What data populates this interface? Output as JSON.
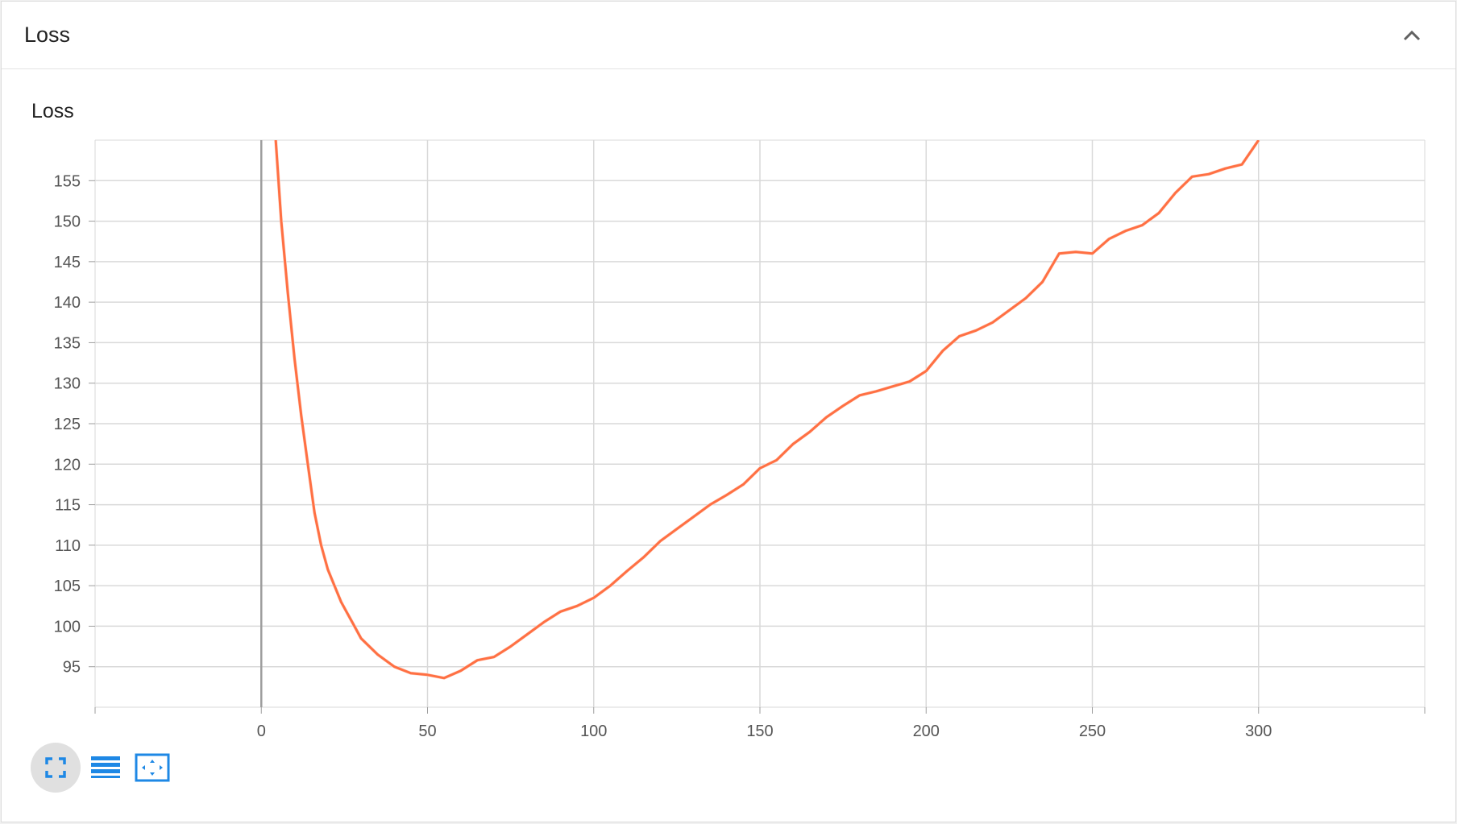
{
  "card": {
    "title": "Loss",
    "collapse_icon": "chevron-up-icon"
  },
  "toolbar": {
    "buttons": [
      {
        "name": "fullscreen-button",
        "icon": "fullscreen-icon",
        "active": true
      },
      {
        "name": "toggle-log-scale-button",
        "icon": "lines-icon",
        "active": false
      },
      {
        "name": "fit-domain-button",
        "icon": "fit-to-data-icon",
        "active": false
      }
    ]
  },
  "colors": {
    "line": "#ff7043",
    "line_raw": "#ffd8cc",
    "grid": "#d9d9d9",
    "axis_zero": "#9e9e9e",
    "icon_blue": "#1e88e5"
  },
  "chart_data": {
    "type": "line",
    "title": "Loss",
    "xlabel": "",
    "ylabel": "",
    "xlim": [
      -50,
      350
    ],
    "ylim": [
      90,
      160
    ],
    "x_ticks": [
      0,
      50,
      100,
      150,
      200,
      250,
      300
    ],
    "y_ticks": [
      95,
      100,
      105,
      110,
      115,
      120,
      125,
      130,
      135,
      140,
      145,
      150,
      155
    ],
    "grid": true,
    "series": [
      {
        "x": [
          4,
          6,
          8,
          10,
          12,
          14,
          16,
          18,
          20,
          22,
          24,
          26,
          28,
          30,
          35,
          40,
          45,
          50,
          55,
          60,
          65,
          70,
          75,
          80,
          85,
          90,
          95,
          100,
          105,
          110,
          115,
          120,
          125,
          130,
          135,
          140,
          145,
          150,
          155,
          160,
          165,
          170,
          175,
          180,
          185,
          190,
          195,
          200,
          205,
          210,
          215,
          220,
          225,
          230,
          235,
          240,
          245,
          250,
          255,
          260,
          265,
          270,
          275,
          280,
          285,
          290,
          295,
          300
        ],
        "values": [
          162,
          150,
          141,
          133,
          126,
          120,
          114,
          110,
          107,
          105,
          103,
          101.5,
          100,
          98.5,
          96.5,
          95,
          94.2,
          94,
          93.6,
          94.5,
          95.8,
          96.2,
          97.5,
          99,
          100.5,
          101.8,
          102.5,
          103.5,
          105,
          106.8,
          108.5,
          110.5,
          112,
          113.5,
          115,
          116.2,
          117.5,
          119.5,
          120.5,
          122.5,
          124,
          125.8,
          127.2,
          128.5,
          129,
          129.6,
          130.2,
          131.5,
          134,
          135.8,
          136.5,
          137.5,
          139,
          140.5,
          142.5,
          146,
          146.2,
          146,
          147.8,
          148.8,
          149.5,
          151,
          153.5,
          155.5,
          155.8,
          156.5,
          157,
          160
        ]
      }
    ]
  }
}
